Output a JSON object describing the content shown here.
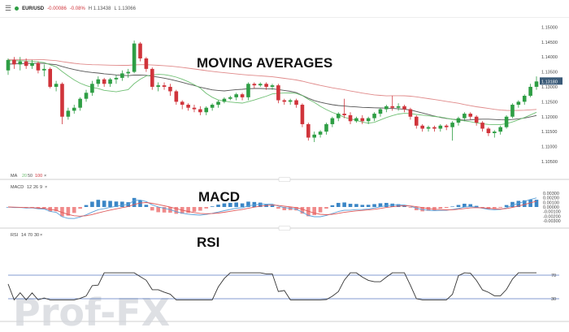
{
  "header": {
    "symbol": "EUR/USD",
    "change": "-0.00086",
    "change_pct": "-0.08%",
    "high": "H 1.13438",
    "low": "L 1.13066",
    "status_color": "#2e9e44",
    "menu_icon": "hamburger-icon"
  },
  "annotations": {
    "ma_title": "MOVING AVERAGES",
    "macd_title": "MACD",
    "rsi_title": "RSI"
  },
  "price_axis": {
    "ticks": [
      "1.15000",
      "1.14500",
      "1.14000",
      "1.13500",
      "1.13000",
      "1.12500",
      "1.12000",
      "1.11500",
      "1.11000",
      "1.10500"
    ],
    "current": "1.13180",
    "current_color": "#3a5a78"
  },
  "ma_legend": {
    "name": "MA",
    "p1": "20",
    "p2": "50",
    "p3": "100",
    "close": "×"
  },
  "macd_legend": {
    "name": "MACD",
    "p1": "12",
    "p2": "26",
    "p3": "9",
    "close": "×"
  },
  "rsi_legend": {
    "name": "RSI",
    "p1": "14",
    "p2": "70",
    "p3": "30",
    "close": "×"
  },
  "macd_axis": {
    "ticks": [
      "0.00300",
      "0.00200",
      "0.00100",
      "0.00000",
      "-0.00100",
      "-0.00200",
      "-0.00300"
    ]
  },
  "rsi_axis": {
    "ticks": [
      "70",
      "30"
    ]
  },
  "watermark": "Prof-FX",
  "colors": {
    "up": "#2e9e44",
    "down": "#d0343b",
    "ma20": "#6fbf73",
    "ma50": "#555555",
    "ma100": "#e08a8a",
    "hist_pos": "#3b86c6",
    "hist_neg": "#f08a8a",
    "macd_line": "#5aa0d8",
    "signal_line": "#e05a5a",
    "rsi_line": "#333333",
    "rsi_band": "#5a7ac0"
  },
  "chart_data": [
    {
      "type": "line",
      "title": "",
      "x": [],
      "series": [
        {
          "name": "MA 20",
          "values": []
        },
        {
          "name": "MA 50",
          "values": []
        },
        {
          "name": "MA 100",
          "values": []
        }
      ],
      "ylim": [
        1.102,
        1.152
      ],
      "candles": [
        [
          1.1355,
          1.139,
          1.134,
          1.1395
        ],
        [
          1.139,
          1.1375,
          1.136,
          1.14
        ],
        [
          1.1375,
          1.1385,
          1.1355,
          1.14
        ],
        [
          1.1385,
          1.137,
          1.136,
          1.1395
        ],
        [
          1.137,
          1.138,
          1.136,
          1.139
        ],
        [
          1.138,
          1.1355,
          1.1345,
          1.1385
        ],
        [
          1.1355,
          1.136,
          1.1335,
          1.1375
        ],
        [
          1.136,
          1.13,
          1.1295,
          1.1365
        ],
        [
          1.13,
          1.131,
          1.1285,
          1.132
        ],
        [
          1.131,
          1.12,
          1.1175,
          1.1315
        ],
        [
          1.12,
          1.122,
          1.119,
          1.123
        ],
        [
          1.122,
          1.123,
          1.121,
          1.124
        ],
        [
          1.123,
          1.126,
          1.122,
          1.1265
        ],
        [
          1.126,
          1.128,
          1.125,
          1.129
        ],
        [
          1.128,
          1.131,
          1.127,
          1.132
        ],
        [
          1.131,
          1.1325,
          1.13,
          1.1335
        ],
        [
          1.1325,
          1.131,
          1.13,
          1.133
        ],
        [
          1.131,
          1.1325,
          1.13,
          1.133
        ],
        [
          1.1325,
          1.133,
          1.131,
          1.134
        ],
        [
          1.133,
          1.1345,
          1.132,
          1.1355
        ],
        [
          1.1345,
          1.135,
          1.133,
          1.136
        ],
        [
          1.135,
          1.1445,
          1.1345,
          1.1455
        ],
        [
          1.1445,
          1.1395,
          1.1385,
          1.145
        ],
        [
          1.1395,
          1.136,
          1.135,
          1.14
        ],
        [
          1.136,
          1.13,
          1.129,
          1.1365
        ],
        [
          1.13,
          1.1305,
          1.1285,
          1.1315
        ],
        [
          1.1305,
          1.13,
          1.129,
          1.1315
        ],
        [
          1.13,
          1.1285,
          1.127,
          1.131
        ],
        [
          1.1285,
          1.125,
          1.124,
          1.129
        ],
        [
          1.125,
          1.124,
          1.1225,
          1.1255
        ],
        [
          1.124,
          1.123,
          1.122,
          1.1245
        ],
        [
          1.123,
          1.1225,
          1.1215,
          1.124
        ],
        [
          1.1225,
          1.1215,
          1.1205,
          1.1235
        ],
        [
          1.1215,
          1.123,
          1.1205,
          1.1235
        ],
        [
          1.123,
          1.124,
          1.122,
          1.1245
        ],
        [
          1.124,
          1.125,
          1.123,
          1.1255
        ],
        [
          1.125,
          1.126,
          1.1245,
          1.1265
        ],
        [
          1.126,
          1.1265,
          1.1255,
          1.127
        ],
        [
          1.1265,
          1.1275,
          1.1255,
          1.128
        ],
        [
          1.1275,
          1.1265,
          1.1255,
          1.128
        ],
        [
          1.1265,
          1.131,
          1.1255,
          1.1315
        ],
        [
          1.131,
          1.1305,
          1.1295,
          1.1315
        ],
        [
          1.1305,
          1.131,
          1.13,
          1.1315
        ],
        [
          1.131,
          1.13,
          1.129,
          1.1315
        ],
        [
          1.13,
          1.1305,
          1.129,
          1.131
        ],
        [
          1.1305,
          1.1255,
          1.1245,
          1.131
        ],
        [
          1.1255,
          1.125,
          1.124,
          1.126
        ],
        [
          1.125,
          1.1255,
          1.124,
          1.126
        ],
        [
          1.1255,
          1.124,
          1.123,
          1.126
        ],
        [
          1.124,
          1.1175,
          1.1165,
          1.1245
        ],
        [
          1.1175,
          1.113,
          1.112,
          1.118
        ],
        [
          1.113,
          1.114,
          1.1115,
          1.115
        ],
        [
          1.114,
          1.115,
          1.113,
          1.1155
        ],
        [
          1.115,
          1.1175,
          1.114,
          1.118
        ],
        [
          1.1175,
          1.1195,
          1.1165,
          1.12
        ],
        [
          1.1195,
          1.121,
          1.1185,
          1.1215
        ],
        [
          1.121,
          1.1205,
          1.1195,
          1.126
        ],
        [
          1.1205,
          1.1185,
          1.1175,
          1.1215
        ],
        [
          1.1185,
          1.1195,
          1.118,
          1.12
        ],
        [
          1.1195,
          1.1185,
          1.1175,
          1.1205
        ],
        [
          1.1185,
          1.1195,
          1.1175,
          1.12
        ],
        [
          1.1195,
          1.121,
          1.1185,
          1.1215
        ],
        [
          1.121,
          1.1225,
          1.12,
          1.123
        ],
        [
          1.1225,
          1.1235,
          1.1215,
          1.124
        ],
        [
          1.1235,
          1.123,
          1.122,
          1.127
        ],
        [
          1.123,
          1.1235,
          1.122,
          1.1245
        ],
        [
          1.1235,
          1.1225,
          1.1215,
          1.124
        ],
        [
          1.1225,
          1.12,
          1.119,
          1.123
        ],
        [
          1.12,
          1.117,
          1.116,
          1.1205
        ],
        [
          1.117,
          1.116,
          1.115,
          1.1175
        ],
        [
          1.116,
          1.1165,
          1.115,
          1.117
        ],
        [
          1.1165,
          1.116,
          1.115,
          1.117
        ],
        [
          1.116,
          1.117,
          1.115,
          1.1175
        ],
        [
          1.117,
          1.1165,
          1.1155,
          1.1175
        ],
        [
          1.1165,
          1.118,
          1.112,
          1.1185
        ],
        [
          1.118,
          1.1195,
          1.117,
          1.12
        ],
        [
          1.1195,
          1.121,
          1.1185,
          1.1215
        ],
        [
          1.121,
          1.12,
          1.119,
          1.1215
        ],
        [
          1.12,
          1.118,
          1.117,
          1.1205
        ],
        [
          1.118,
          1.116,
          1.115,
          1.1185
        ],
        [
          1.116,
          1.1145,
          1.1135,
          1.1165
        ],
        [
          1.1145,
          1.115,
          1.113,
          1.1155
        ],
        [
          1.115,
          1.1165,
          1.114,
          1.117
        ],
        [
          1.1165,
          1.12,
          1.116,
          1.1205
        ],
        [
          1.12,
          1.124,
          1.1195,
          1.1245
        ],
        [
          1.124,
          1.125,
          1.123,
          1.1255
        ],
        [
          1.125,
          1.127,
          1.124,
          1.1275
        ],
        [
          1.127,
          1.13,
          1.1265,
          1.131
        ],
        [
          1.13,
          1.1318,
          1.129,
          1.1335
        ]
      ]
    }
  ]
}
